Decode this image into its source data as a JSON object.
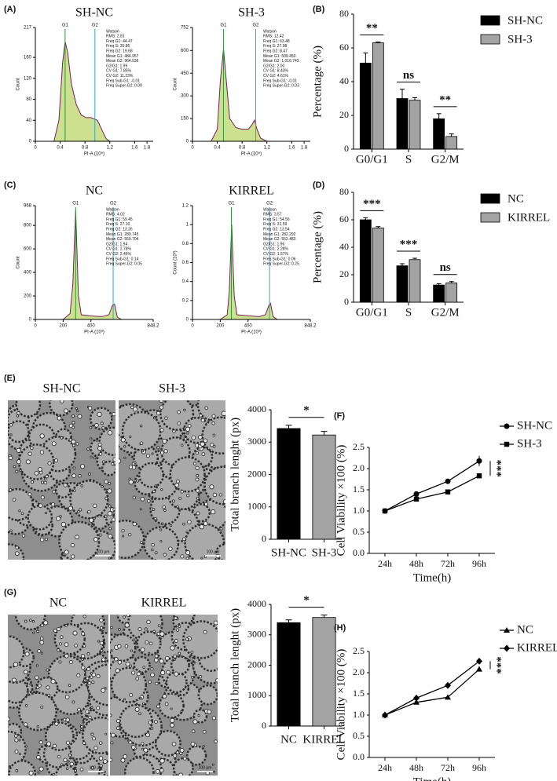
{
  "chart_data": [
    {
      "type": "flow",
      "panel": "(A)",
      "title": "SH-NC",
      "xlabel": "PI-A (10⁶)",
      "ylabel": "Count",
      "xlim": [
        0,
        1.9
      ],
      "xticks": [
        0,
        0.4,
        0.8,
        1.2,
        1.6,
        1.8
      ],
      "ylim": [
        0,
        217
      ],
      "yticks": [
        0,
        40,
        80,
        120,
        160,
        217
      ],
      "x": [
        0.3,
        0.38,
        0.44,
        0.48,
        0.52,
        0.58,
        0.66,
        0.74,
        0.82,
        0.9,
        0.96,
        1.0,
        1.06,
        1.14,
        1.2
      ],
      "values": [
        0,
        40,
        150,
        190,
        170,
        110,
        70,
        50,
        45,
        45,
        42,
        40,
        25,
        5,
        0
      ],
      "gates": [
        {
          "label": "G1",
          "value": 0.48
        },
        {
          "label": "G2",
          "value": 0.96
        }
      ],
      "stats": [
        "Watson",
        "RMS: 2.81",
        "Freq G1: 44.47",
        "Freq S: 35.85",
        "Freq G2: 19.68",
        "Mean G1: 484.957",
        "Mean G2: 964.536",
        "G2/G1: 1.99",
        "CV G1: 7.85%",
        "CV G2: 11.23%",
        "Freq Sub-G1: -0.01",
        "Freq Super-G2: 0.00"
      ]
    },
    {
      "type": "flow",
      "title": "SH-3",
      "xlabel": "PI-A (10⁶)",
      "ylabel": "Count",
      "xlim": [
        0,
        1.9
      ],
      "xticks": [
        0,
        0.4,
        0.8,
        1.2,
        1.6,
        1.8
      ],
      "ylim": [
        0,
        752
      ],
      "yticks": [
        0,
        150,
        300,
        450,
        600,
        752
      ],
      "x": [
        0.3,
        0.4,
        0.45,
        0.5,
        0.55,
        0.6,
        0.7,
        0.8,
        0.9,
        0.96,
        1.0,
        1.04,
        1.1,
        1.2
      ],
      "values": [
        0,
        80,
        400,
        610,
        380,
        150,
        90,
        80,
        80,
        110,
        140,
        80,
        20,
        0
      ],
      "gates": [
        {
          "label": "G1",
          "value": 0.5
        },
        {
          "label": "G2",
          "value": 1.02
        }
      ],
      "stats": [
        "Watson",
        "RMS: 12.42",
        "Freq G1: 63.48",
        "Freq S: 27.98",
        "Freq G2: 8.47",
        "Mean G1: 509.450",
        "Mean G2: 1,016.743",
        "G2/G1: 2.00",
        "CV G1: 8.43%",
        "CV G2: 4.61%",
        "Freq Sub-G1: -0.01",
        "Freq Super-G2: 0.03"
      ]
    },
    {
      "type": "bar",
      "panel": "(B)",
      "ylabel": "Percentage (%)",
      "categories": [
        "G0/G1",
        "S",
        "G2/M"
      ],
      "ylim": [
        0,
        80
      ],
      "yticks": [
        0,
        20,
        40,
        60,
        80
      ],
      "series": [
        {
          "name": "SH-NC",
          "color": "#000000",
          "values": [
            51,
            30,
            18
          ],
          "errors": [
            6,
            5.5,
            3
          ]
        },
        {
          "name": "SH-3",
          "color": "#a3a3a3",
          "values": [
            63,
            29,
            7.5
          ],
          "errors": [
            0.5,
            1.5,
            1.5
          ]
        }
      ],
      "significance": [
        "**",
        "ns",
        "**"
      ]
    },
    {
      "type": "flow",
      "panel": "(C)",
      "title": "NC",
      "xlabel": "PI-A (10³)",
      "ylabel": "Count",
      "xlim": [
        0,
        848.2
      ],
      "xticks": [
        0,
        200,
        400,
        848.2
      ],
      "ylim": [
        0,
        968
      ],
      "yticks": [
        0,
        200,
        400,
        600,
        800,
        968
      ],
      "x": [
        200,
        250,
        270,
        290,
        310,
        330,
        400,
        480,
        530,
        555,
        570,
        590,
        620
      ],
      "values": [
        0,
        50,
        300,
        930,
        200,
        40,
        30,
        25,
        40,
        120,
        130,
        20,
        0
      ],
      "gates": [
        {
          "label": "G1",
          "value": 290
        },
        {
          "label": "G2",
          "value": 560
        }
      ],
      "stats": [
        "Watson",
        "RMS: 4.02",
        "Freq G1: 59.45",
        "Freq S: 27.10",
        "Freq G2: 13.26",
        "Mean G1: 289.745",
        "Mean G2: 560.704",
        "G2/G1: 1.94",
        "CV G1: 2.78%",
        "CV G2: 2.46%",
        "Freq Sub-G1: 0.14",
        "Freq Super-G2: 0.05"
      ]
    },
    {
      "type": "flow",
      "title": "KIRREL",
      "xlabel": "PI-A (10³)",
      "ylabel": "Count (10³)",
      "xlim": [
        0,
        848.2
      ],
      "xticks": [
        0,
        200,
        400,
        848.2
      ],
      "ylim": [
        0,
        1.2
      ],
      "yticks": [
        0,
        0.2,
        0.4,
        0.6,
        0.8,
        1,
        1.2
      ],
      "x": [
        200,
        250,
        265,
        282,
        300,
        320,
        400,
        480,
        525,
        550,
        562,
        580,
        610
      ],
      "values": [
        0,
        0.05,
        0.3,
        1.0,
        0.25,
        0.05,
        0.04,
        0.03,
        0.05,
        0.15,
        0.17,
        0.03,
        0
      ],
      "gates": [
        {
          "label": "G1",
          "value": 280
        },
        {
          "label": "G2",
          "value": 555
        }
      ],
      "stats": [
        "Watson",
        "RMS: 3.57",
        "Freq G1: 54.56",
        "Freq S: 31.59",
        "Freq G2: 13.54",
        "Mean G1: 282.292",
        "Mean G2: 552.483",
        "G2/G1: 1.96",
        "CV G1: 2.28%",
        "CV G2: 1.57%",
        "Freq Sub-G1: 0.06",
        "Freq Super-G2: 0.25"
      ]
    },
    {
      "type": "bar",
      "panel": "(D)",
      "ylabel": "Percentage (%)",
      "categories": [
        "G0/G1",
        "S",
        "G2/M"
      ],
      "ylim": [
        0,
        80
      ],
      "yticks": [
        0,
        20,
        40,
        60,
        80
      ],
      "series": [
        {
          "name": "NC",
          "color": "#000000",
          "values": [
            60,
            26.5,
            12.5
          ],
          "errors": [
            1.5,
            1.5,
            1
          ]
        },
        {
          "name": "KIRREL",
          "color": "#a3a3a3",
          "values": [
            54,
            31,
            14
          ],
          "errors": [
            1,
            1,
            1
          ]
        }
      ],
      "significance": [
        "***",
        "***",
        "ns"
      ]
    },
    {
      "type": "image",
      "panel": "(E)",
      "title": "SH-NC",
      "scale_bar": "100 μm"
    },
    {
      "type": "image",
      "title": "SH-3",
      "scale_bar": "100 μm"
    },
    {
      "type": "bar",
      "ylabel": "Total branch lenght (px)",
      "categories": [
        "SH-NC",
        "SH-3"
      ],
      "values": [
        3420,
        3220
      ],
      "errors": [
        100,
        110
      ],
      "colors": [
        "#000000",
        "#a3a3a3"
      ],
      "ylim": [
        0,
        4000
      ],
      "yticks": [
        0,
        1000,
        2000,
        3000,
        4000
      ],
      "significance": "*"
    },
    {
      "type": "line",
      "panel": "(F)",
      "ylabel": "Cell Viability ×100 (%)",
      "xlabel": "Time(h)",
      "categories": [
        "24h",
        "48h",
        "72h",
        "96h"
      ],
      "ylim": [
        0,
        2.5
      ],
      "yticks": [
        {
          "value": 0,
          "label": "0.0"
        },
        0.5,
        {
          "value": 1,
          "label": "1.0"
        },
        1.5,
        {
          "value": 2,
          "label": "2.0"
        },
        2.5
      ],
      "series": [
        {
          "name": "SH-NC",
          "marker": "circle",
          "color": "#000000",
          "values": [
            1.0,
            1.4,
            1.7,
            2.18
          ],
          "errors": [
            0.02,
            0.03,
            0.04,
            0.12
          ]
        },
        {
          "name": "SH-3",
          "marker": "square",
          "color": "#000000",
          "values": [
            1.0,
            1.28,
            1.45,
            1.83
          ],
          "errors": [
            0.02,
            0.03,
            0.03,
            0.04
          ]
        }
      ],
      "significance": "***"
    },
    {
      "type": "image",
      "panel": "(G)",
      "title": "NC",
      "scale_bar": "100 μm"
    },
    {
      "type": "image",
      "title": "KIRREL",
      "scale_bar": "100 μm"
    },
    {
      "type": "bar",
      "ylabel": "Total branch lenght (px)",
      "categories": [
        "NC",
        "KIRREL"
      ],
      "values": [
        3400,
        3570
      ],
      "errors": [
        90,
        80
      ],
      "colors": [
        "#000000",
        "#a3a3a3"
      ],
      "ylim": [
        0,
        4000
      ],
      "yticks": [
        0,
        1000,
        2000,
        3000,
        4000
      ],
      "significance": "*"
    },
    {
      "type": "line",
      "panel": "(H)",
      "ylabel": "Cell Viability ×100 (%)",
      "xlabel": "Time(h)",
      "categories": [
        "24h",
        "48h",
        "72h",
        "96h"
      ],
      "ylim": [
        0,
        2.5
      ],
      "yticks": [
        {
          "value": 0,
          "label": "0.0"
        },
        0.5,
        {
          "value": 1,
          "label": "1.0"
        },
        1.5,
        {
          "value": 2,
          "label": "2.0"
        },
        2.5
      ],
      "series": [
        {
          "name": "NC",
          "marker": "triangle",
          "color": "#000000",
          "values": [
            1.0,
            1.3,
            1.42,
            2.08
          ],
          "errors": [
            0.02,
            0.03,
            0.03,
            0.05
          ]
        },
        {
          "name": "KIRREL",
          "marker": "diamond",
          "color": "#000000",
          "values": [
            1.0,
            1.4,
            1.7,
            2.27
          ],
          "errors": [
            0.02,
            0.03,
            0.04,
            0.04
          ]
        }
      ],
      "significance": "***"
    }
  ]
}
